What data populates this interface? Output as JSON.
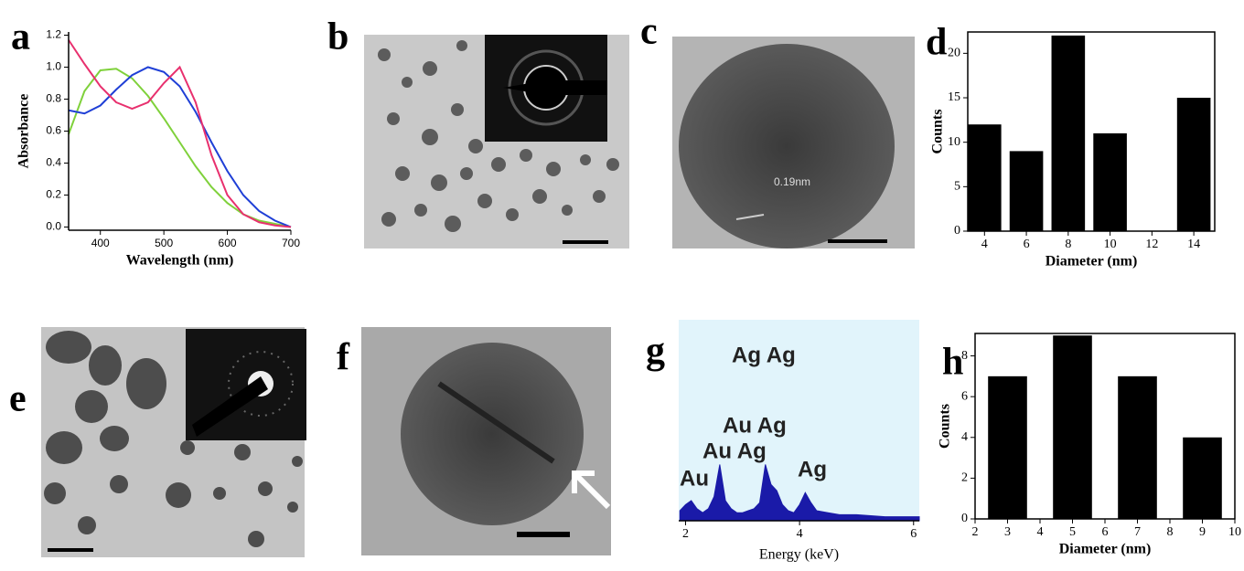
{
  "panel_labels": [
    "a",
    "b",
    "c",
    "d",
    "e",
    "f",
    "g",
    "h"
  ],
  "image_c_spacing": "0.19nm",
  "chart_data": [
    {
      "type": "line",
      "xlabel": "Wavelength (nm)",
      "ylabel": "Absorbance",
      "x": [
        350,
        375,
        400,
        425,
        450,
        475,
        500,
        525,
        550,
        575,
        600,
        625,
        650,
        675,
        700
      ],
      "series": [
        {
          "color": "#7fd13b",
          "values": [
            0.58,
            0.85,
            0.98,
            0.99,
            0.93,
            0.82,
            0.68,
            0.53,
            0.38,
            0.25,
            0.15,
            0.08,
            0.04,
            0.02,
            0.0
          ]
        },
        {
          "color": "#1f3fd6",
          "values": [
            0.73,
            0.71,
            0.76,
            0.86,
            0.95,
            1.0,
            0.97,
            0.88,
            0.72,
            0.53,
            0.35,
            0.2,
            0.1,
            0.04,
            0.0
          ]
        },
        {
          "color": "#e8306e",
          "values": [
            1.17,
            1.02,
            0.88,
            0.78,
            0.74,
            0.78,
            0.9,
            1.0,
            0.78,
            0.45,
            0.2,
            0.08,
            0.03,
            0.01,
            0.0
          ]
        }
      ],
      "xlim": [
        350,
        700
      ],
      "xticks": [
        400,
        500,
        600,
        700
      ],
      "ylim": [
        -0.02,
        1.22
      ],
      "yticks": [
        {
          "value": 0,
          "label": "0.0"
        },
        0.2,
        0.4,
        0.6,
        0.8,
        {
          "value": 1,
          "label": "1.0"
        },
        1.2
      ]
    },
    {
      "type": "bar",
      "xlabel": "Diameter (nm)",
      "ylabel": "Counts",
      "color": "#000000",
      "x": [
        4,
        6,
        8,
        10,
        12,
        14
      ],
      "values": [
        12,
        9,
        22,
        11,
        0,
        15
      ],
      "xlim": [
        3.2,
        15
      ],
      "xticks": [
        4,
        6,
        8,
        10,
        12,
        14
      ],
      "ylim": [
        0,
        22.4
      ],
      "yticks": [
        0,
        5,
        10,
        15,
        20
      ]
    },
    {
      "type": "area",
      "xlabel": "Energy (keV)",
      "color": "#1a1aa8",
      "background": "#e1f4fb",
      "x": [
        1.9,
        2.0,
        2.1,
        2.2,
        2.3,
        2.4,
        2.5,
        2.6,
        2.7,
        2.8,
        2.9,
        3.0,
        3.1,
        3.2,
        3.3,
        3.4,
        3.5,
        3.6,
        3.7,
        3.8,
        3.9,
        4.0,
        4.1,
        4.2,
        4.3,
        4.5,
        4.7,
        5.0,
        5.5,
        6.0,
        6.1
      ],
      "values": [
        5,
        8,
        10,
        6,
        4,
        6,
        12,
        28,
        10,
        6,
        4,
        4,
        5,
        6,
        9,
        28,
        18,
        15,
        8,
        5,
        4,
        8,
        14,
        9,
        5,
        4,
        3,
        3,
        2,
        2,
        2
      ],
      "xlim": [
        1.88,
        6.1
      ],
      "xticks": [
        2,
        4,
        6
      ],
      "ylim": [
        0,
        100
      ],
      "annotations": [
        "Ag Ag",
        "Au Ag",
        "Au Ag",
        "Au",
        "Ag"
      ]
    },
    {
      "type": "bar",
      "xlabel": "Diameter (nm)",
      "ylabel": "Counts",
      "color": "#000000",
      "x": [
        3,
        5,
        7,
        9
      ],
      "values": [
        7,
        9,
        7,
        4
      ],
      "xlim": [
        2,
        10
      ],
      "xticks": [
        2,
        3,
        4,
        5,
        6,
        7,
        8,
        9,
        10
      ],
      "ylim": [
        0,
        9.1
      ],
      "yticks": [
        0,
        2,
        4,
        6,
        8
      ]
    }
  ]
}
